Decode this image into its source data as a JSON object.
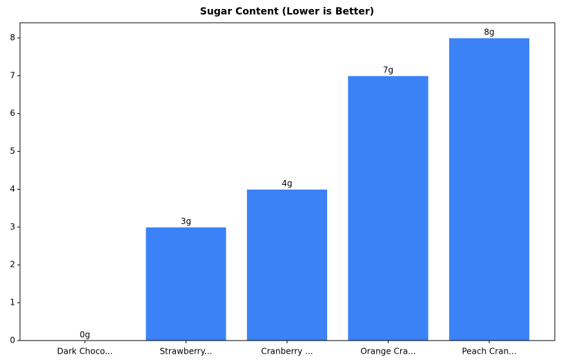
{
  "chart_data": {
    "type": "bar",
    "title": "Sugar Content (Lower is Better)",
    "categories": [
      "Dark Choco...",
      "Strawberry...",
      "Cranberry ...",
      "Orange Cra...",
      "Peach Cran..."
    ],
    "values": [
      0,
      3,
      4,
      7,
      8
    ],
    "value_labels": [
      "0g",
      "3g",
      "4g",
      "7g",
      "8g"
    ],
    "color": "#3b82f6",
    "ylim": [
      0,
      8.4
    ],
    "yticks": [
      0,
      1,
      2,
      3,
      4,
      5,
      6,
      7,
      8
    ],
    "grid": false
  }
}
